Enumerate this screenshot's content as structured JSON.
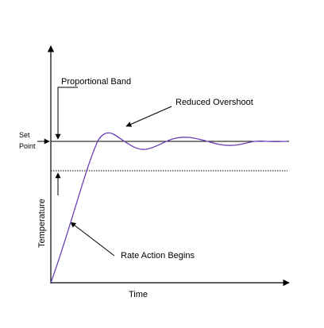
{
  "labels": {
    "proportional_band": "Proportional Band",
    "reduced_overshoot": "Reduced Overshoot",
    "set_point_line1": "Set",
    "set_point_line2": "Point",
    "rate_action_begins": "Rate Action Begins",
    "x_axis": "Time",
    "y_axis": "Temperature"
  },
  "colors": {
    "response_curve": "#6a3fb5",
    "lines": "#000000"
  }
}
